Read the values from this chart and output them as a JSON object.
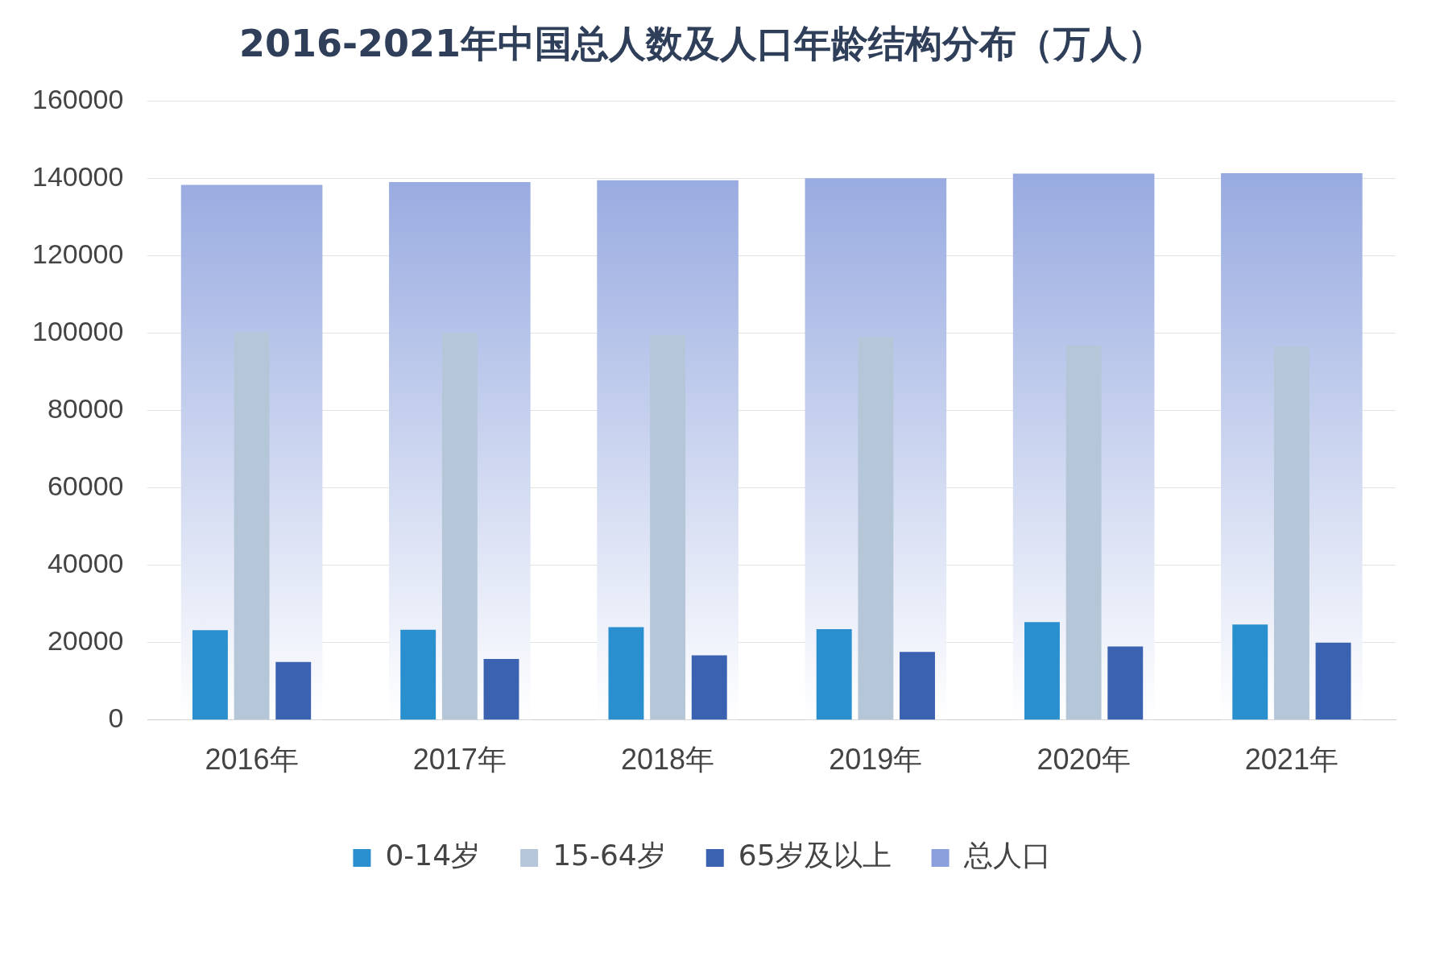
{
  "chart_data": {
    "type": "bar",
    "title": "2016-2021年中国总人数及人口年龄结构分布（万人）",
    "categories": [
      "2016年",
      "2017年",
      "2018年",
      "2019年",
      "2020年",
      "2021年"
    ],
    "series": [
      {
        "name": "0-14岁",
        "color": "#2a8fcf",
        "values": [
          23200,
          23300,
          24000,
          23500,
          25300,
          24700
        ]
      },
      {
        "name": "15-64岁",
        "color": "#b4c6d8",
        "values": [
          100200,
          100000,
          99400,
          99000,
          96800,
          96500
        ]
      },
      {
        "name": "65岁及以上",
        "color": "#3a62b0",
        "values": [
          15000,
          15800,
          16700,
          17600,
          19000,
          20000
        ]
      },
      {
        "name": "总人口",
        "color": "#8a9fdc",
        "values": [
          138300,
          139000,
          139500,
          140000,
          141200,
          141300
        ]
      }
    ],
    "ylim": [
      0,
      160000
    ],
    "yticks": [
      0,
      20000,
      40000,
      60000,
      80000,
      100000,
      120000,
      140000,
      160000
    ],
    "grid": "y",
    "legend": "bottom"
  }
}
